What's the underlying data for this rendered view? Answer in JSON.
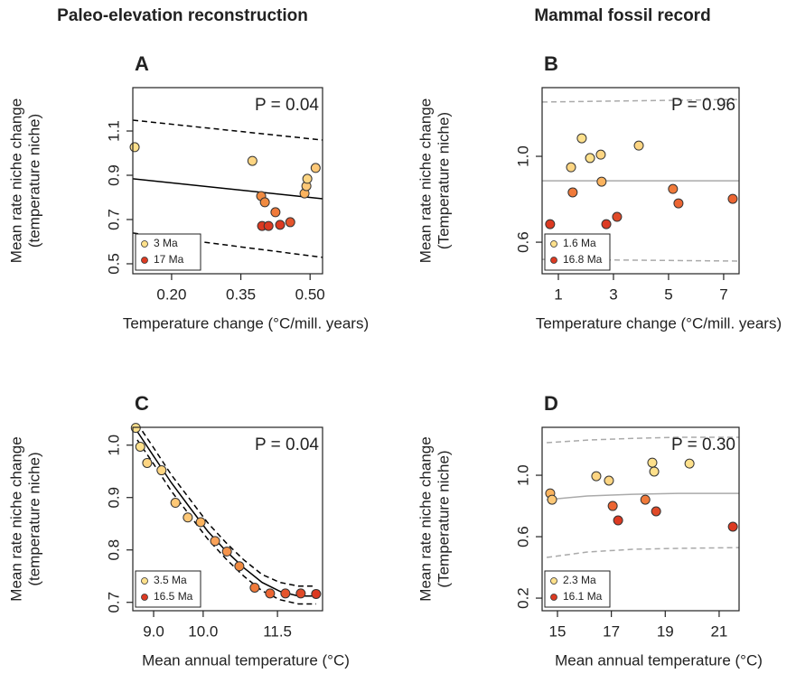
{
  "chart_data": [
    {
      "type": "scatter",
      "title": "Paleo-elevation reconstruction",
      "panel_label": "A",
      "annotation": "P = 0.04",
      "x_label": "Temperature change (°C/mill. years)",
      "y_label": [
        "Mean rate niche change",
        "(temperature niche)"
      ],
      "xlim": [
        0.116,
        0.527
      ],
      "ylim": [
        0.455,
        1.296
      ],
      "xticks": [
        {
          "value": 0.2,
          "label": "0.20"
        },
        0.35,
        {
          "value": 0.5,
          "label": "0.50"
        }
      ],
      "yticks": [
        0.5,
        0.7,
        0.9,
        1.1
      ],
      "points": {
        "x": [
          0.12,
          0.375,
          0.394,
          0.402,
          0.396,
          0.41,
          0.425,
          0.435,
          0.457,
          0.488,
          0.492,
          0.494,
          0.512
        ],
        "y": [
          1.027,
          0.965,
          0.806,
          0.778,
          0.671,
          0.671,
          0.733,
          0.676,
          0.688,
          0.818,
          0.851,
          0.884,
          0.933
        ],
        "colors": [
          "#fee08b",
          "#fdd582",
          "#f08a40",
          "#f08a40",
          "#dc3a22",
          "#dc3a22",
          "#f07a3a",
          "#dc3a22",
          "#e5552c",
          "#fbb35e",
          "#fdc877",
          "#fdd582",
          "#fdc877"
        ]
      },
      "lines": [
        {
          "style": "solid",
          "color": "#000000",
          "x": [
            0.116,
            0.527
          ],
          "y": [
            0.884,
            0.794
          ]
        },
        {
          "style": "dashed",
          "color": "#000000",
          "x": [
            0.116,
            0.527
          ],
          "y": [
            1.149,
            1.059
          ]
        },
        {
          "style": "dashed",
          "color": "#000000",
          "x": [
            0.116,
            0.527
          ],
          "y": [
            0.639,
            0.529
          ]
        }
      ],
      "legend": [
        {
          "name": "3 Ma",
          "color": "#fee08b"
        },
        {
          "name": "17 Ma",
          "color": "#dc3a22"
        }
      ]
    },
    {
      "type": "scatter",
      "title": "Mammal fossil record",
      "panel_label": "B",
      "annotation": "P = 0.96",
      "x_label": "Temperature change (°C/mill. years)",
      "y_label": [
        "Mean rate niche change",
        "(Temperature niche)"
      ],
      "xlim": [
        0.41,
        7.56
      ],
      "ylim": [
        0.453,
        1.32
      ],
      "xticks": [
        1,
        3,
        5,
        7
      ],
      "yticks": [
        0.6,
        {
          "value": 1,
          "label": "1.0"
        }
      ],
      "points": {
        "x": [
          0.7,
          1.46,
          1.52,
          1.85,
          2.15,
          2.54,
          2.57,
          2.74,
          3.13,
          3.92,
          5.16,
          5.36,
          7.33
        ],
        "y": [
          0.684,
          0.949,
          0.832,
          1.084,
          0.992,
          1.008,
          0.882,
          0.684,
          0.718,
          1.05,
          0.848,
          0.781,
          0.802
        ],
        "colors": [
          "#dc3a22",
          "#fdd582",
          "#f07a3a",
          "#fee08b",
          "#fee08b",
          "#fdd582",
          "#fbb35e",
          "#dc3a22",
          "#e04a28",
          "#fdd582",
          "#f07a3a",
          "#ec6532",
          "#ec6532"
        ]
      },
      "lines": [
        {
          "style": "solid",
          "color": "#aaaaaa",
          "x": [
            0.41,
            7.56
          ],
          "y": [
            0.886,
            0.886
          ]
        },
        {
          "style": "dashed",
          "color": "#aaaaaa",
          "x": [
            0.41,
            7.56
          ],
          "y": [
            1.253,
            1.265
          ]
        },
        {
          "style": "dashed",
          "color": "#aaaaaa",
          "x": [
            0.41,
            7.56
          ],
          "y": [
            0.52,
            0.512
          ]
        }
      ],
      "legend": [
        {
          "name": "1.6 Ma",
          "color": "#fee08b"
        },
        {
          "name": "16.8 Ma",
          "color": "#dc3a22"
        }
      ]
    },
    {
      "type": "scatter",
      "panel_label": "C",
      "annotation": "P = 0.04",
      "x_label": "Mean annual temperature (°C)",
      "y_label": [
        "Mean rate niche change",
        "(temperature niche)"
      ],
      "xlim": [
        8.58,
        12.41
      ],
      "ylim": [
        0.684,
        1.034
      ],
      "xticks": [
        {
          "value": 9,
          "label": "9.0"
        },
        {
          "value": 10,
          "label": "10.0"
        },
        11.5
      ],
      "yticks": [
        0.7,
        0.8,
        0.9,
        {
          "value": 1,
          "label": "1.0"
        }
      ],
      "points": {
        "x": [
          8.64,
          8.73,
          8.87,
          9.16,
          9.44,
          9.69,
          9.95,
          10.24,
          10.48,
          10.73,
          11.04,
          11.35,
          11.66,
          11.97,
          12.28
        ],
        "y": [
          1.033,
          0.997,
          0.966,
          0.952,
          0.89,
          0.862,
          0.853,
          0.817,
          0.797,
          0.769,
          0.728,
          0.717,
          0.717,
          0.717,
          0.716
        ],
        "colors": [
          "#fee08b",
          "#fee08b",
          "#fdd582",
          "#fdd582",
          "#fdc877",
          "#fdc877",
          "#fbb35e",
          "#fba35a",
          "#f5944c",
          "#f08a40",
          "#f07a3a",
          "#ec6532",
          "#e5552c",
          "#e04a28",
          "#dc3a22"
        ]
      },
      "lines": [
        {
          "style": "solid",
          "color": "#000000",
          "x": [
            8.67,
            9.0,
            9.36,
            9.73,
            10.09,
            10.46,
            10.82,
            11.19,
            11.55,
            11.92,
            12.28
          ],
          "y": [
            1.026,
            0.979,
            0.928,
            0.881,
            0.836,
            0.798,
            0.766,
            0.738,
            0.721,
            0.712,
            0.712
          ]
        },
        {
          "style": "dashed",
          "color": "#000000",
          "x": [
            8.67,
            9.0,
            9.36,
            9.73,
            10.09,
            10.46,
            10.82,
            11.19,
            11.55,
            11.92,
            12.28
          ],
          "y": [
            1.041,
            0.995,
            0.943,
            0.897,
            0.852,
            0.814,
            0.781,
            0.753,
            0.738,
            0.731,
            0.731
          ]
        },
        {
          "style": "dashed",
          "color": "#000000",
          "x": [
            8.67,
            9.0,
            9.36,
            9.73,
            10.09,
            10.46,
            10.82,
            11.19,
            11.55,
            11.92,
            12.28
          ],
          "y": [
            1.01,
            0.964,
            0.912,
            0.866,
            0.821,
            0.783,
            0.75,
            0.722,
            0.705,
            0.697,
            0.697
          ]
        }
      ],
      "legend": [
        {
          "name": "3.5 Ma",
          "color": "#fee08b"
        },
        {
          "name": "16.5 Ma",
          "color": "#dc3a22"
        }
      ]
    },
    {
      "type": "scatter",
      "panel_label": "D",
      "annotation": "P = 0.30",
      "x_label": "Mean annual temperature (°C)",
      "y_label": [
        "Mean rate niche change",
        "(Temperature niche)"
      ],
      "xlim": [
        14.43,
        21.74
      ],
      "ylim": [
        0.118,
        1.312
      ],
      "xticks": [
        15,
        17,
        19,
        21
      ],
      "yticks": [
        0.2,
        0.6,
        {
          "value": 1,
          "label": "1.0"
        }
      ],
      "points": {
        "x": [
          14.73,
          14.8,
          16.44,
          16.91,
          17.05,
          17.25,
          18.26,
          18.52,
          18.59,
          18.66,
          19.9,
          21.51
        ],
        "y": [
          0.882,
          0.841,
          0.994,
          0.965,
          0.8,
          0.706,
          0.841,
          1.082,
          1.024,
          0.765,
          1.076,
          0.665
        ],
        "colors": [
          "#fbb35e",
          "#fdc877",
          "#fdd582",
          "#fdd582",
          "#ec6532",
          "#dc3a22",
          "#f07a3a",
          "#fee08b",
          "#fee08b",
          "#e04a28",
          "#fee08b",
          "#dc3a22"
        ]
      },
      "lines": [
        {
          "style": "solid",
          "color": "#aaaaaa",
          "x": [
            14.6,
            16.11,
            17.79,
            19.47,
            21.74
          ],
          "y": [
            0.841,
            0.865,
            0.876,
            0.882,
            0.882
          ]
        },
        {
          "style": "dashed",
          "color": "#aaaaaa",
          "x": [
            14.6,
            16.11,
            17.79,
            19.47,
            21.74
          ],
          "y": [
            1.212,
            1.229,
            1.24,
            1.247,
            1.247
          ]
        },
        {
          "style": "dashed",
          "color": "#aaaaaa",
          "x": [
            14.6,
            16.11,
            17.79,
            19.47,
            21.74
          ],
          "y": [
            0.465,
            0.5,
            0.518,
            0.524,
            0.529
          ]
        }
      ],
      "legend": [
        {
          "name": "2.3 Ma",
          "color": "#fee08b"
        },
        {
          "name": "16.1 Ma",
          "color": "#dc3a22"
        }
      ]
    }
  ]
}
